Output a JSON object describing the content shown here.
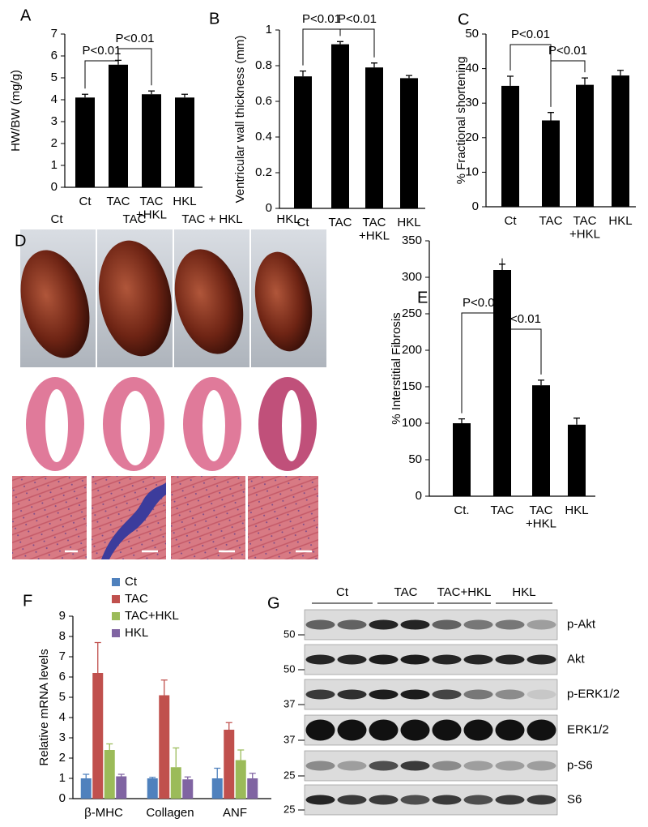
{
  "chart_data": [
    {
      "type": "bar",
      "panel": "A",
      "ylabel": "HW/BW (mg/g)",
      "categories": [
        "Ct",
        "TAC",
        "TAC\n+HKL",
        "HKL"
      ],
      "values": [
        4.1,
        5.6,
        4.25,
        4.1
      ],
      "errors": [
        0.15,
        0.2,
        0.15,
        0.15
      ],
      "color": "#000000",
      "ylim": [
        0,
        7
      ],
      "yticks": [
        0,
        1,
        2,
        3,
        4,
        5,
        6,
        7
      ],
      "annotations": [
        "P<0.01",
        "P<0.01"
      ]
    },
    {
      "type": "bar",
      "panel": "B",
      "ylabel": "Ventricular wall thickness (mm)",
      "categories": [
        "Ct",
        "TAC",
        "TAC\n+HKL",
        "HKL"
      ],
      "values": [
        0.74,
        0.92,
        0.79,
        0.73
      ],
      "errors": [
        0.03,
        0.015,
        0.025,
        0.015
      ],
      "color": "#000000",
      "ylim": [
        0,
        1
      ],
      "yticks": [
        0,
        0.2,
        0.4,
        0.6,
        0.8,
        1
      ],
      "annotations": [
        "P<0.01",
        "P<0.01"
      ]
    },
    {
      "type": "bar",
      "panel": "C",
      "ylabel": "% Fractional shortening",
      "categories": [
        "Ct",
        "TAC",
        "TAC\n+HKL",
        "HKL"
      ],
      "values": [
        35,
        25,
        35.3,
        38
      ],
      "errors": [
        2.8,
        2.3,
        2,
        1.5
      ],
      "color": "#000000",
      "ylim": [
        0,
        50
      ],
      "yticks": [
        0,
        10,
        20,
        30,
        40,
        50
      ],
      "annotations": [
        "P<0.01",
        "P<0.01"
      ]
    },
    {
      "type": "bar",
      "panel": "E",
      "ylabel": "% Interstitial Fibrosis",
      "categories": [
        "Ct.",
        "TAC",
        "TAC\n+HKL",
        "HKL"
      ],
      "values": [
        100,
        310,
        152,
        98
      ],
      "errors": [
        6,
        8,
        7,
        9
      ],
      "color": "#000000",
      "ylim": [
        0,
        350
      ],
      "yticks": [
        0,
        50,
        100,
        150,
        200,
        250,
        300,
        350
      ],
      "annotations": [
        "P<0.01",
        "P<0.01"
      ]
    },
    {
      "type": "bar",
      "panel": "F",
      "ylabel": "Relative mRNA levels",
      "categories": [
        "β-MHC",
        "Collagen",
        "ANF"
      ],
      "ylim": [
        0,
        9
      ],
      "yticks": [
        0,
        1,
        2,
        3,
        4,
        5,
        6,
        7,
        8,
        9
      ],
      "series": [
        {
          "name": "Ct",
          "color": "#4f81bd",
          "values": [
            1,
            1,
            1
          ],
          "errors": [
            0.2,
            0.05,
            0.5
          ]
        },
        {
          "name": "TAC",
          "color": "#c0504d",
          "values": [
            6.2,
            5.1,
            3.4
          ],
          "errors": [
            1.5,
            0.75,
            0.35
          ]
        },
        {
          "name": "TAC+HKL",
          "color": "#9bbb59",
          "values": [
            2.4,
            1.55,
            1.9
          ],
          "errors": [
            0.3,
            0.95,
            0.5
          ]
        },
        {
          "name": "HKL",
          "color": "#8064a2",
          "values": [
            1.1,
            0.95,
            1.0
          ],
          "errors": [
            0.1,
            0.12,
            0.25
          ]
        }
      ]
    }
  ],
  "panel_d": {
    "panel": "D",
    "columns": [
      "Ct",
      "TAC",
      "TAC + HKL",
      "HKL"
    ]
  },
  "panel_g": {
    "panel": "G",
    "groups": [
      "Ct",
      "TAC",
      "TAC+HKL",
      "HKL"
    ],
    "rows": [
      {
        "label": "p-Akt",
        "marker": 50
      },
      {
        "label": "Akt",
        "marker": 50
      },
      {
        "label": "p-ERK1/2",
        "marker": 37
      },
      {
        "label": "ERK1/2",
        "marker": 37
      },
      {
        "label": "p-S6",
        "marker": 25
      },
      {
        "label": "S6",
        "marker": 25
      }
    ]
  }
}
